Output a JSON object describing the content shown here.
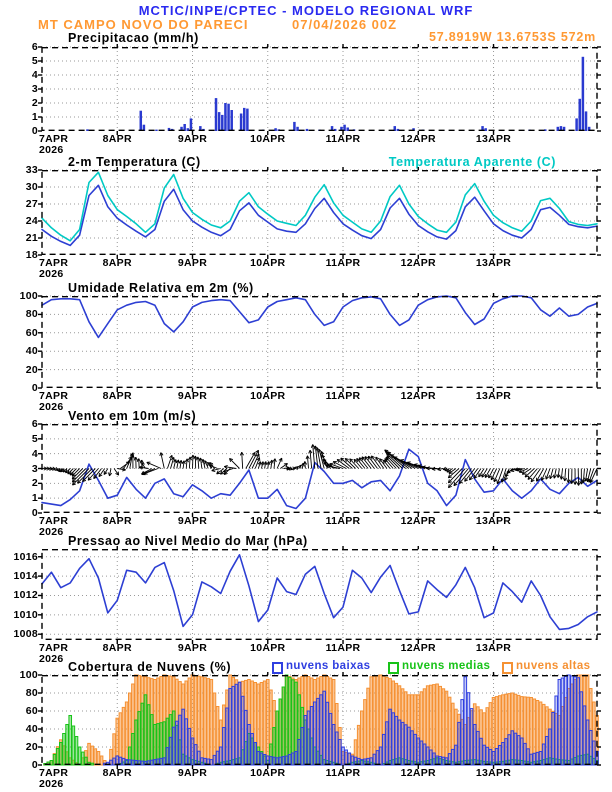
{
  "header": {
    "title": "MCTIC/INPE/CPTEC - MODELO REGIONAL WRF",
    "station": "MT CAMPO NOVO DO PARECI",
    "run": "07/04/2026 00Z",
    "location": "57.8919W 13.6753S 572m",
    "title_color": "#2a2af0",
    "accent_color": "#ff9933"
  },
  "x_axis": {
    "start_label": "7APR",
    "year": "2026",
    "days": [
      "8APR",
      "9APR",
      "10APR",
      "11APR",
      "12APR",
      "13APR"
    ],
    "span_days": 7.375
  },
  "chart_data": [
    {
      "id": "precipitation",
      "type": "bar",
      "title": "Precipitacao (mm/h)",
      "ylabel": "mm/h",
      "ylim": [
        0,
        6
      ],
      "yticks": [
        0,
        1,
        2,
        3,
        4,
        5,
        6
      ],
      "bar_color": "#2a3ad0",
      "grid": true,
      "bars_hour_value": [
        [
          14,
          0.12
        ],
        [
          15,
          0.08
        ],
        [
          31,
          1.45
        ],
        [
          32,
          0.45
        ],
        [
          36,
          0.1
        ],
        [
          40,
          0.22
        ],
        [
          41,
          0.15
        ],
        [
          44,
          0.3
        ],
        [
          45,
          0.5
        ],
        [
          46,
          0.2
        ],
        [
          47,
          0.9
        ],
        [
          50,
          0.35
        ],
        [
          51,
          0.15
        ],
        [
          55,
          2.35
        ],
        [
          56,
          1.35
        ],
        [
          57,
          1.15
        ],
        [
          58,
          2.0
        ],
        [
          59,
          1.95
        ],
        [
          60,
          1.5
        ],
        [
          63,
          1.25
        ],
        [
          64,
          1.65
        ],
        [
          65,
          1.6
        ],
        [
          70,
          0.1
        ],
        [
          74,
          0.2
        ],
        [
          75,
          0.12
        ],
        [
          80,
          0.65
        ],
        [
          81,
          0.3
        ],
        [
          84,
          0.15
        ],
        [
          88,
          0.1
        ],
        [
          92,
          0.35
        ],
        [
          93,
          0.15
        ],
        [
          95,
          0.3
        ],
        [
          96,
          0.45
        ],
        [
          97,
          0.25
        ],
        [
          99,
          0.12
        ],
        [
          112,
          0.35
        ],
        [
          113,
          0.15
        ],
        [
          118,
          0.2
        ],
        [
          121,
          0.1
        ],
        [
          140,
          0.35
        ],
        [
          141,
          0.2
        ],
        [
          155,
          0.1
        ],
        [
          160,
          0.12
        ],
        [
          164,
          0.3
        ],
        [
          165,
          0.35
        ],
        [
          166,
          0.3
        ],
        [
          170,
          0.9
        ],
        [
          171,
          2.3
        ],
        [
          172,
          5.3
        ],
        [
          173,
          1.4
        ],
        [
          174,
          0.3
        ]
      ]
    },
    {
      "id": "temperature",
      "type": "line",
      "title": "2-m Temperatura (C)",
      "legend_label": "Temperatura Aparente (C)",
      "ylim": [
        18,
        33
      ],
      "yticks": [
        18,
        21,
        24,
        27,
        30,
        33
      ],
      "step_days": 0.125,
      "grid": true,
      "series": [
        {
          "name": "2-m Temperatura (C)",
          "color": "#2d3fd3",
          "values": [
            22.5,
            21.3,
            20.4,
            19.7,
            21.5,
            28.5,
            30.3,
            26.5,
            24.5,
            23.3,
            22.2,
            21.2,
            22.5,
            27.5,
            29.6,
            26.0,
            24.0,
            22.9,
            22.0,
            21.4,
            22.5,
            25.8,
            27.2,
            25.0,
            23.8,
            22.6,
            22.2,
            22.0,
            23.5,
            26.2,
            28.0,
            25.5,
            23.5,
            22.4,
            21.4,
            20.9,
            22.5,
            26.3,
            28.0,
            25.2,
            23.2,
            22.1,
            21.2,
            20.8,
            22.3,
            26.5,
            28.2,
            25.8,
            23.5,
            22.3,
            21.5,
            21.0,
            22.5,
            26.0,
            26.4,
            25.0,
            23.4,
            23.0,
            22.8,
            23.1
          ]
        },
        {
          "name": "Temperatura Aparente (C)",
          "color": "#00c9c4",
          "values": [
            24.5,
            22.8,
            21.5,
            20.5,
            22.5,
            30.8,
            32.6,
            28.5,
            26.0,
            24.8,
            23.5,
            22.0,
            23.5,
            29.8,
            32.2,
            28.0,
            25.5,
            24.3,
            23.3,
            22.8,
            24.0,
            27.5,
            29.0,
            26.5,
            25.2,
            24.0,
            23.6,
            23.2,
            25.0,
            28.2,
            30.4,
            27.2,
            25.0,
            23.8,
            22.6,
            22.0,
            24.0,
            28.3,
            30.3,
            27.0,
            24.8,
            23.5,
            22.4,
            22.0,
            23.8,
            28.6,
            30.6,
            27.5,
            25.0,
            23.7,
            22.8,
            22.2,
            24.0,
            27.6,
            28.0,
            26.2,
            23.9,
            23.4,
            23.2,
            23.5
          ]
        }
      ]
    },
    {
      "id": "relative-humidity",
      "type": "line",
      "title": "Umidade Relativa em 2m (%)",
      "ylim": [
        0,
        100
      ],
      "yticks": [
        0,
        20,
        40,
        60,
        80,
        100
      ],
      "step_days": 0.125,
      "grid": true,
      "series": [
        {
          "name": "Umidade Relativa em 2m (%)",
          "color": "#2d3fd3",
          "values": [
            90,
            96,
            97,
            97,
            96,
            72,
            55,
            70,
            85,
            90,
            93,
            94,
            90,
            70,
            61,
            72,
            88,
            93,
            95,
            96,
            95,
            83,
            71,
            74,
            88,
            94,
            96,
            98,
            96,
            80,
            68,
            72,
            88,
            95,
            98,
            99,
            97,
            80,
            68,
            74,
            90,
            96,
            99,
            100,
            98,
            82,
            69,
            75,
            92,
            97,
            100,
            100,
            98,
            85,
            78,
            87,
            78,
            80,
            88,
            92
          ]
        }
      ]
    },
    {
      "id": "wind-10m",
      "type": "wind",
      "title": "Vento em 10m (m/s)",
      "ylim": [
        0,
        6
      ],
      "yticks": [
        0,
        1,
        2,
        3,
        4,
        5,
        6
      ],
      "step_days": 0.125,
      "grid": true,
      "arrow_anchor": 3,
      "speed_series": {
        "name": "Vento em 10m (m/s)",
        "color": "#2d3fd3",
        "values": [
          0.7,
          0.6,
          0.5,
          0.9,
          1.5,
          3.3,
          2.2,
          1.0,
          1.2,
          2.4,
          1.6,
          1.0,
          2.0,
          2.3,
          1.3,
          1.1,
          1.9,
          1.5,
          1.0,
          1.3,
          1.2,
          2.0,
          2.9,
          1.0,
          1.0,
          1.6,
          0.5,
          0.3,
          1.0,
          3.4,
          2.8,
          2.0,
          2.0,
          2.2,
          1.7,
          2.1,
          2.2,
          1.5,
          2.5,
          4.3,
          3.8,
          2.0,
          1.5,
          0.5,
          1.2,
          3.6,
          2.3,
          1.4,
          1.5,
          2.3,
          1.5,
          1.0,
          1.5,
          2.3,
          1.6,
          1.3,
          2.0,
          2.4,
          1.8,
          2.2
        ]
      },
      "direction_keyframes_t_deg": [
        [
          0.0,
          0
        ],
        [
          0.15,
          -10
        ],
        [
          0.3,
          -140
        ],
        [
          0.45,
          -135
        ],
        [
          0.7,
          -135
        ],
        [
          0.9,
          -120
        ],
        [
          1.05,
          45
        ],
        [
          1.2,
          90
        ],
        [
          1.35,
          95
        ],
        [
          1.45,
          210
        ],
        [
          1.55,
          200
        ],
        [
          1.65,
          70
        ],
        [
          1.8,
          80
        ],
        [
          2.0,
          88
        ],
        [
          2.15,
          100
        ],
        [
          2.3,
          130
        ],
        [
          2.4,
          215
        ],
        [
          2.5,
          225
        ],
        [
          2.6,
          160
        ],
        [
          2.7,
          60
        ],
        [
          2.8,
          65
        ],
        [
          2.95,
          80
        ],
        [
          3.1,
          85
        ],
        [
          3.2,
          10
        ],
        [
          3.3,
          -20
        ],
        [
          3.4,
          60
        ],
        [
          3.5,
          95
        ],
        [
          3.65,
          95
        ],
        [
          3.8,
          110
        ],
        [
          3.95,
          170
        ],
        [
          4.1,
          140
        ],
        [
          4.25,
          130
        ],
        [
          4.4,
          128
        ],
        [
          4.55,
          125
        ],
        [
          4.7,
          132
        ],
        [
          4.85,
          140
        ],
        [
          5.0,
          155
        ],
        [
          5.15,
          165
        ],
        [
          5.3,
          185
        ],
        [
          5.45,
          210
        ],
        [
          5.6,
          228
        ],
        [
          5.75,
          232
        ],
        [
          5.9,
          238
        ],
        [
          6.05,
          245
        ],
        [
          6.2,
          255
        ],
        [
          6.3,
          200
        ],
        [
          6.4,
          190
        ],
        [
          6.55,
          225
        ],
        [
          6.7,
          245
        ],
        [
          6.85,
          260
        ],
        [
          7.0,
          268
        ],
        [
          7.15,
          272
        ],
        [
          7.3,
          255
        ],
        [
          7.375,
          245
        ]
      ]
    },
    {
      "id": "mslp",
      "type": "line",
      "title": "Pressao ao Nivel Medio do Mar (hPa)",
      "ylim": [
        1007.4,
        1016.8
      ],
      "yticks": [
        1008,
        1010,
        1012,
        1014,
        1016
      ],
      "step_days": 0.125,
      "grid": true,
      "series": [
        {
          "name": "Pressao ao Nivel Medio do Mar (hPa)",
          "color": "#2d3fd3",
          "values": [
            1013.2,
            1014.4,
            1012.8,
            1013.3,
            1014.8,
            1015.8,
            1013.8,
            1010.2,
            1011.5,
            1014.6,
            1014.4,
            1013.3,
            1014.9,
            1015.4,
            1012.5,
            1008.8,
            1010.0,
            1013.4,
            1012.9,
            1012.2,
            1014.5,
            1016.2,
            1013.0,
            1009.3,
            1010.5,
            1013.8,
            1012.4,
            1012.1,
            1014.2,
            1015.0,
            1012.2,
            1009.7,
            1010.8,
            1014.6,
            1013.8,
            1012.3,
            1013.9,
            1015.1,
            1012.5,
            1010.1,
            1010.3,
            1013.5,
            1012.6,
            1011.8,
            1013.1,
            1014.9,
            1012.8,
            1009.7,
            1010.2,
            1013.3,
            1012.4,
            1011.3,
            1013.5,
            1012.0,
            1009.8,
            1008.5,
            1008.6,
            1009.0,
            1009.8,
            1010.3
          ]
        }
      ]
    },
    {
      "id": "cloud-cover",
      "type": "cloudbar",
      "title": "Cobertura de Nuvens (%)",
      "ylim": [
        0,
        100
      ],
      "yticks": [
        0,
        20,
        40,
        60,
        80,
        100
      ],
      "step_days": 0.125,
      "grid": true,
      "legend": [
        {
          "label": "nuvens baixas",
          "color": "#2f3fe0"
        },
        {
          "label": "nuvens medias",
          "color": "#18c318"
        },
        {
          "label": "nuvens altas",
          "color": "#f59133"
        }
      ],
      "series": [
        {
          "name": "nuvens altas",
          "color": "#f59133",
          "fill": "rgba(247,150,60,0.55)",
          "values": [
            0,
            5,
            28,
            8,
            0,
            24,
            15,
            0,
            52,
            70,
            100,
            98,
            95,
            100,
            98,
            90,
            100,
            98,
            95,
            50,
            100,
            92,
            95,
            90,
            95,
            60,
            100,
            95,
            100,
            95,
            100,
            95,
            15,
            12,
            60,
            98,
            100,
            96,
            88,
            78,
            78,
            88,
            90,
            82,
            62,
            45,
            68,
            58,
            75,
            78,
            80,
            76,
            75,
            70,
            62,
            55,
            85,
            100,
            100,
            55
          ]
        },
        {
          "name": "nuvens medias",
          "color": "#18c318",
          "fill": "rgba(40,200,40,0.45)",
          "values": [
            0,
            5,
            25,
            55,
            20,
            3,
            0,
            0,
            0,
            5,
            50,
            78,
            45,
            48,
            60,
            12,
            6,
            3,
            0,
            3,
            5,
            8,
            35,
            20,
            5,
            60,
            100,
            92,
            50,
            20,
            6,
            3,
            0,
            3,
            5,
            3,
            0,
            5,
            8,
            5,
            3,
            5,
            8,
            5,
            3,
            5,
            6,
            4,
            3,
            4,
            6,
            5,
            3,
            5,
            8,
            6,
            5,
            10,
            12,
            5
          ]
        },
        {
          "name": "nuvens baixas",
          "color": "#2f3fe0",
          "fill": "rgba(47,63,224,0.28)",
          "values": [
            0,
            0,
            0,
            0,
            0,
            0,
            0,
            3,
            10,
            6,
            5,
            4,
            6,
            8,
            42,
            62,
            30,
            8,
            6,
            20,
            85,
            92,
            45,
            15,
            10,
            8,
            10,
            15,
            55,
            70,
            82,
            45,
            20,
            10,
            6,
            8,
            20,
            62,
            50,
            42,
            30,
            20,
            10,
            8,
            22,
            98,
            45,
            22,
            15,
            25,
            38,
            30,
            12,
            15,
            40,
            95,
            100,
            97,
            50,
            15
          ]
        }
      ]
    }
  ]
}
